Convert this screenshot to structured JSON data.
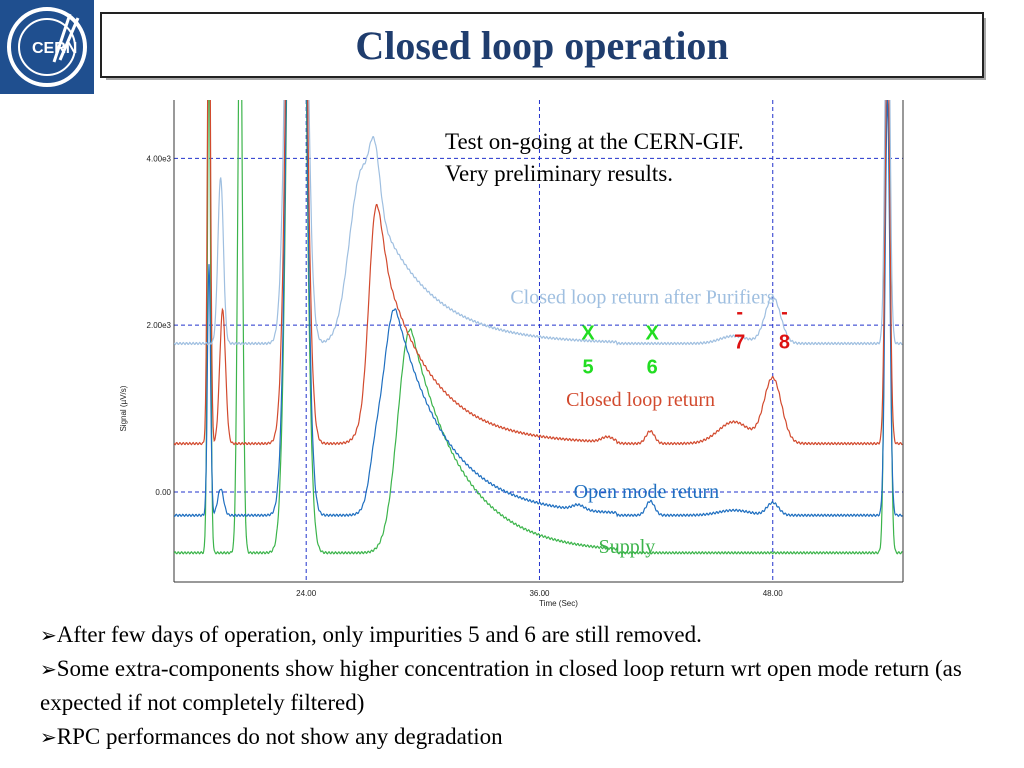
{
  "slide": {
    "title": "Closed loop operation",
    "logo_text": "CERN"
  },
  "note": {
    "line1": "Test on-going at the CERN-GIF.",
    "line2": "Very preliminary results."
  },
  "bullets": [
    {
      "mark": "➢",
      "text": "After few days of operation, only impurities 5 and 6 are still removed."
    },
    {
      "mark": "➢",
      "text": "Some extra-components show higher concentration in closed loop return wrt open mode return (as expected if not completely filtered)"
    },
    {
      "mark": "➢",
      "text": "RPC performances do not show any degradation"
    }
  ],
  "colors": {
    "title": "#1f3d6e",
    "logo_bg": "#1f4f8f",
    "grid": "#2233cc",
    "supply": "#3cb44b",
    "open_mode_return": "#1f6fc0",
    "closed_loop_return": "#d24a2e",
    "closed_loop_after_purifiers": "#9fbfe0",
    "marker_removed": "#22dd22",
    "marker_remaining": "#dd1111"
  },
  "chart_data": {
    "type": "line",
    "xlabel": "Time (Sec)",
    "ylabel": "Signal (µV/s)",
    "xlim": [
      17.2,
      54.7
    ],
    "ylim": [
      -1080,
      4700
    ],
    "xticks": [
      24,
      36,
      48
    ],
    "xtick_labels": [
      "24.00",
      "36.00",
      "48.00"
    ],
    "yticks": [
      0,
      2000,
      4000
    ],
    "ytick_labels": [
      "0.00",
      "2.00e3",
      "4.00e3"
    ],
    "grid": true,
    "series": [
      {
        "name": "Supply",
        "baseline": -730,
        "peaks": [
          [
            19.0,
            6000,
            0.08
          ],
          [
            20.6,
            7000,
            0.12
          ],
          [
            23.5,
            16000,
            0.35
          ],
          [
            53.9,
            8000,
            0.12
          ]
        ],
        "tail": [
          29.5,
          2600,
          2.6
        ],
        "label_x": 40.5,
        "label_y": -730
      },
      {
        "name": "Open mode return",
        "baseline": -280,
        "peaks": [
          [
            19.0,
            3000,
            0.08
          ],
          [
            19.6,
            320,
            0.15
          ],
          [
            23.5,
            16000,
            0.35
          ],
          [
            27.5,
            300,
            0.28
          ],
          [
            38.0,
            60,
            0.3
          ],
          [
            41.7,
            170,
            0.22
          ],
          [
            46.0,
            60,
            0.8
          ],
          [
            48.0,
            150,
            0.3
          ],
          [
            53.9,
            5000,
            0.12
          ]
        ],
        "tail": [
          28.7,
          2400,
          2.6
        ],
        "label_x": 41.5,
        "label_y": -70
      },
      {
        "name": "Closed loop return",
        "baseline": 580,
        "peaks": [
          [
            19.0,
            6000,
            0.08
          ],
          [
            19.7,
            1600,
            0.15
          ],
          [
            23.5,
            16000,
            0.35
          ],
          [
            27.5,
            1300,
            0.3
          ],
          [
            39.5,
            60,
            0.3
          ],
          [
            41.7,
            150,
            0.22
          ],
          [
            46.0,
            260,
            0.8
          ],
          [
            48.0,
            780,
            0.45
          ],
          [
            53.9,
            5000,
            0.12
          ]
        ],
        "tail": [
          28.2,
          2000,
          2.5
        ],
        "label_x": 41.2,
        "label_y": 1030
      },
      {
        "name": "Closed loop return after Purifiers",
        "baseline": 1780,
        "peaks": [
          [
            19.6,
            2000,
            0.14
          ],
          [
            23.5,
            16000,
            0.35
          ],
          [
            27.5,
            780,
            0.28
          ],
          [
            46.0,
            90,
            0.7
          ],
          [
            48.0,
            560,
            0.4
          ],
          [
            53.9,
            5000,
            0.12
          ]
        ],
        "tail": [
          27.0,
          2000,
          2.8
        ],
        "label_x": 41.3,
        "label_y": 2260
      }
    ],
    "annotations": [
      {
        "text": "X",
        "sub": "5",
        "x": 38.5,
        "y": 1780,
        "type": "removed"
      },
      {
        "text": "X",
        "sub": "6",
        "x": 41.8,
        "y": 1780,
        "type": "removed"
      },
      {
        "text": "-",
        "sub": "7",
        "x": 46.3,
        "y": 1960,
        "type": "remaining"
      },
      {
        "text": "-",
        "sub": "8",
        "x": 48.6,
        "y": 1960,
        "type": "remaining"
      }
    ]
  }
}
